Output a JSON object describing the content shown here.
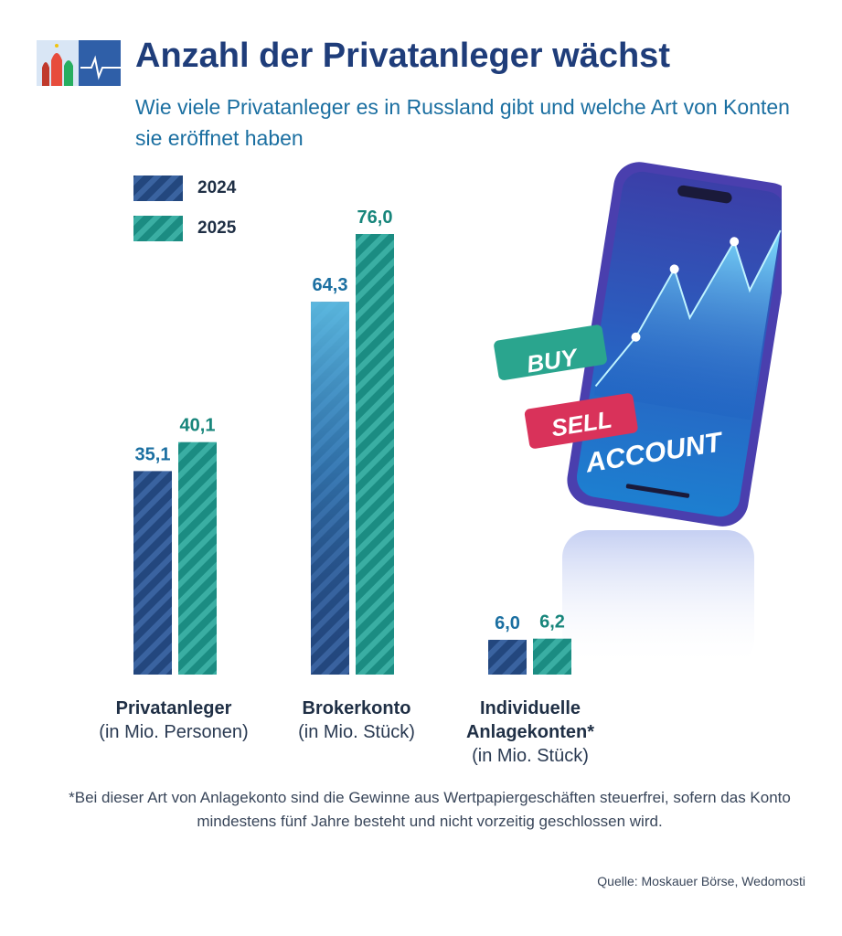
{
  "header": {
    "title": "Anzahl der Privatanleger wächst",
    "subtitle": "Wie viele Privatanleger es in Russland gibt und welche Art von Konten sie eröffnet haben"
  },
  "legend": [
    {
      "label": "2024",
      "color": "#23477e"
    },
    {
      "label": "2025",
      "color": "#1b8c82"
    }
  ],
  "chart_data": {
    "type": "bar",
    "categories": [
      {
        "name": "Privatanleger",
        "unit": "(in Mio. Personen)"
      },
      {
        "name": "Brokerkonto",
        "unit": "(in Mio. Stück)"
      },
      {
        "name": "Individuelle Anlagekonten*",
        "unit": "(in Mio. Stück)"
      }
    ],
    "series": [
      {
        "name": "2024",
        "values": [
          35.1,
          64.3,
          6.0
        ],
        "labels": [
          "35,1",
          "64,3",
          "6,0"
        ]
      },
      {
        "name": "2025",
        "values": [
          40.1,
          76.0,
          6.2
        ],
        "labels": [
          "40,1",
          "76,0",
          "6,2"
        ]
      }
    ],
    "colors": {
      "s2024": "#23477e",
      "s2025": "#1b8c82",
      "highlight_2024": "#3aa3cf",
      "label_2024": "#1b6fa1",
      "label_2025": "#17857b"
    },
    "ylim": [
      0,
      76
    ]
  },
  "illustration": {
    "buy_label": "BUY",
    "sell_label": "SELL",
    "account_label": "ACCOUNT"
  },
  "footnote": "*Bei dieser Art von Anlagekonto sind die Gewinne aus Wertpapiergeschäften steuerfrei, sofern das Konto mindestens fünf Jahre besteht und nicht vorzeitig geschlossen wird.",
  "source": "Quelle: Moskauer Börse, Wedomosti",
  "icons": {
    "logo": "kremlin-logo-icon",
    "phone": "smartphone-trading-icon"
  }
}
